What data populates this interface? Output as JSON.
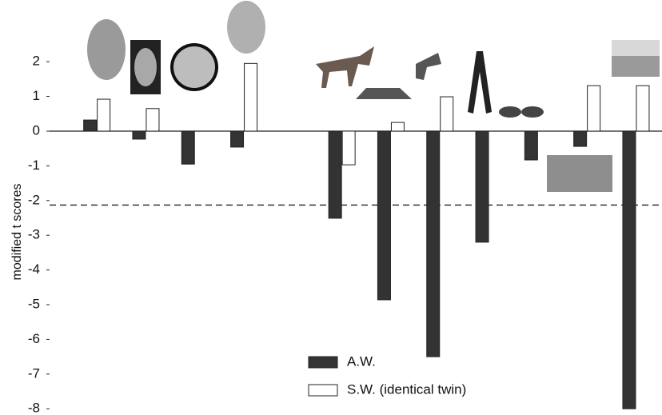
{
  "chart_data": {
    "type": "bar",
    "y_label": "modified t scores",
    "categories": [
      null,
      null,
      null,
      null,
      null,
      null,
      null,
      null,
      null,
      null,
      null,
      null
    ],
    "series": [
      {
        "name": "A.W.",
        "color": "#333333",
        "values": [
          0.32,
          -0.23,
          -0.95,
          -0.46,
          null,
          -2.51,
          -4.86,
          -6.5,
          -3.2,
          -0.83,
          -0.44,
          -8.0
        ]
      },
      {
        "name": "S.W. (identical twin)",
        "color": "#ffffff",
        "values": [
          0.92,
          0.65,
          0,
          1.95,
          null,
          -0.97,
          0.25,
          0.99,
          0,
          0,
          1.31,
          1.31
        ]
      }
    ],
    "ylim": [
      -8,
      2.2
    ],
    "yticks": [
      2,
      1,
      0,
      -1,
      -2,
      -3,
      -4,
      -5,
      -6,
      -7,
      -8
    ],
    "reference_line": -2.13,
    "grid": false
  }
}
